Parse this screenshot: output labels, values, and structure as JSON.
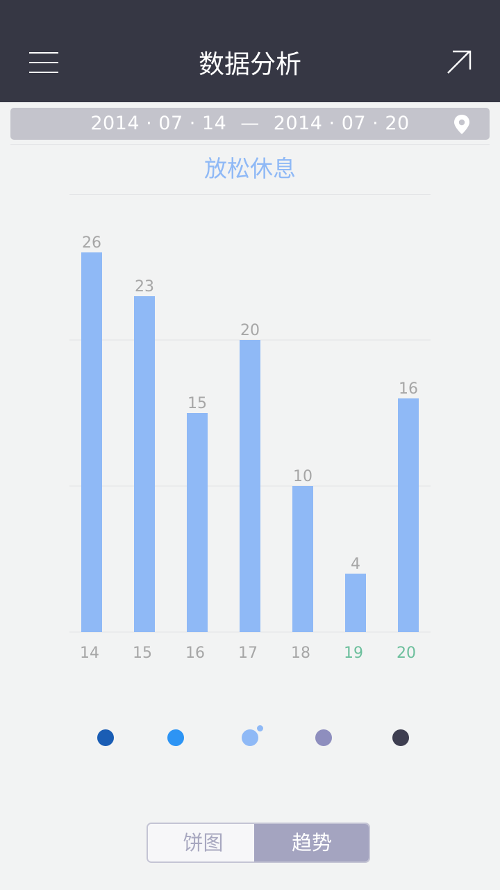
{
  "header": {
    "title": "数据分析",
    "menu_icon": "menu-icon",
    "share_icon": "arrow-up-right-icon"
  },
  "date_range": {
    "start": "2014 · 07 · 14",
    "separator": "—",
    "end": "2014 · 07 · 20",
    "location_icon": "location-pin-icon"
  },
  "chart_data": {
    "type": "bar",
    "title": "放松休息",
    "categories": [
      "14",
      "15",
      "16",
      "17",
      "18",
      "19",
      "20"
    ],
    "values": [
      26,
      23,
      15,
      20,
      10,
      4,
      16
    ],
    "ylim": [
      0,
      30
    ],
    "grid": true,
    "bar_color": "#8fb9f6",
    "highlight_categories": [
      "19",
      "20"
    ],
    "highlight_color": "#6cbf9c",
    "label_color": "#a6a6a6"
  },
  "legend_dots": {
    "colors": [
      "#1a5db4",
      "#2d94f4",
      "#8fb9f6",
      "#8e8ebe",
      "#3e3e50"
    ],
    "selected_index": 2
  },
  "view_toggle": {
    "pie_label": "饼图",
    "trend_label": "趋势",
    "active": "趋势"
  }
}
